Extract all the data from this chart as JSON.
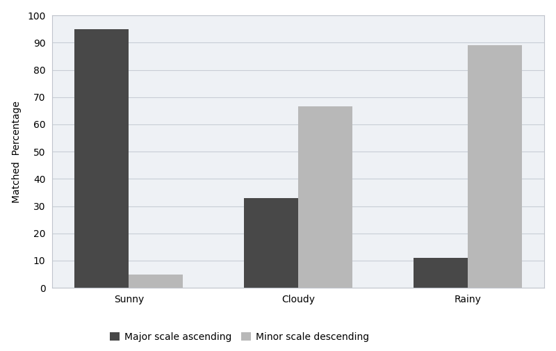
{
  "categories": [
    "Sunny",
    "Cloudy",
    "Rainy"
  ],
  "series": [
    {
      "label": "Major scale ascending",
      "values": [
        95,
        33,
        11
      ],
      "color": "#484848"
    },
    {
      "label": "Minor scale descending",
      "values": [
        5,
        66.5,
        89
      ],
      "color": "#b8b8b8"
    }
  ],
  "ylabel": "Matched  Percentage",
  "ylim": [
    0,
    100
  ],
  "yticks": [
    0,
    10,
    20,
    30,
    40,
    50,
    60,
    70,
    80,
    90,
    100
  ],
  "bar_width": 0.32,
  "background_color": "#ffffff",
  "plot_bg_color": "#eef1f5",
  "grid_color": "#c8cdd5",
  "border_color": "#c0c4cc",
  "axis_fontsize": 10,
  "tick_fontsize": 10,
  "legend_fontsize": 10
}
